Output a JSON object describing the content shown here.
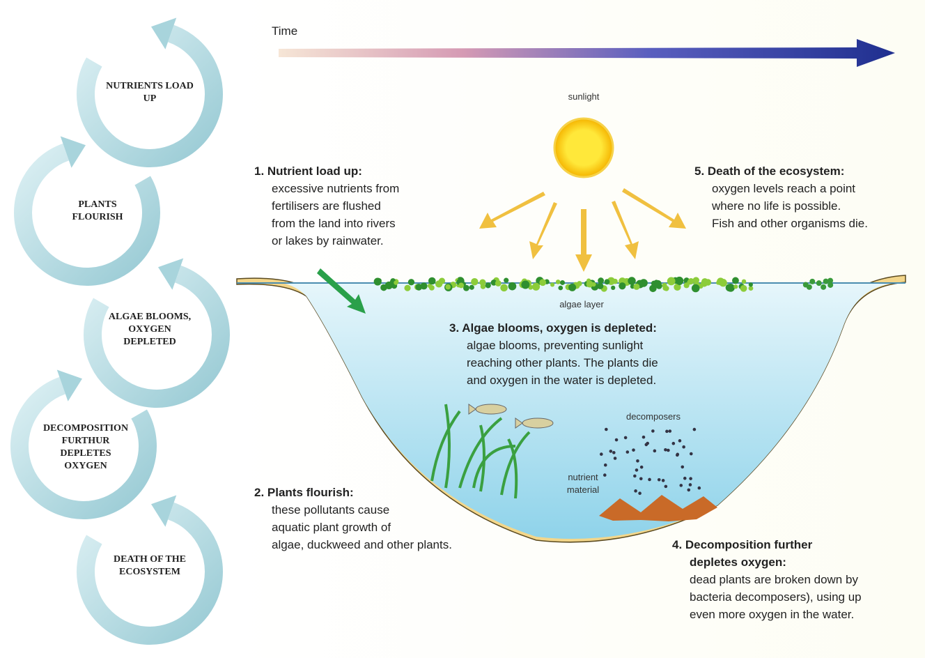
{
  "cycle": [
    [
      "NUTRIENTS LOAD",
      "UP"
    ],
    [
      "PLANTS",
      "FLOURISH"
    ],
    [
      "ALGAE BLOOMS,",
      "OXYGEN",
      "DEPLETED"
    ],
    [
      "DECOMPOSITION",
      "FURTHUR",
      "DEPLETES",
      "OXYGEN"
    ],
    [
      "DEATH OF THE",
      "ECOSYSTEM"
    ]
  ],
  "time_label": "Time",
  "labels": {
    "sunlight": "sunlight",
    "algae_layer": "algae layer",
    "decomposers": "decomposers",
    "nutrient_material": [
      "nutrient",
      "material"
    ]
  },
  "steps": [
    {
      "title": [
        "1. Nutrient load up:"
      ],
      "lines": [
        "excessive nutrients from",
        "fertilisers are flushed",
        "from the land into rivers",
        "or lakes by rainwater."
      ]
    },
    {
      "title": [
        "2. Plants flourish:"
      ],
      "lines": [
        "these pollutants cause",
        "aquatic plant growth of",
        "algae, duckweed and other plants."
      ]
    },
    {
      "title": [
        "3. Algae blooms, oxygen is depleted:"
      ],
      "lines": [
        "algae blooms, preventing sunlight",
        "reaching other plants. The plants die",
        "and oxygen in the water is depleted."
      ]
    },
    {
      "title": [
        "4. Decomposition further",
        "depletes oxygen:"
      ],
      "lines": [
        "dead plants are broken down by",
        "bacteria decomposers), using up",
        "even more oxygen in the water."
      ]
    },
    {
      "title": [
        "5. Death of the ecosystem:"
      ],
      "lines": [
        "oxygen levels reach a point",
        "where no life is possible.",
        "Fish and other organisms die."
      ]
    }
  ]
}
